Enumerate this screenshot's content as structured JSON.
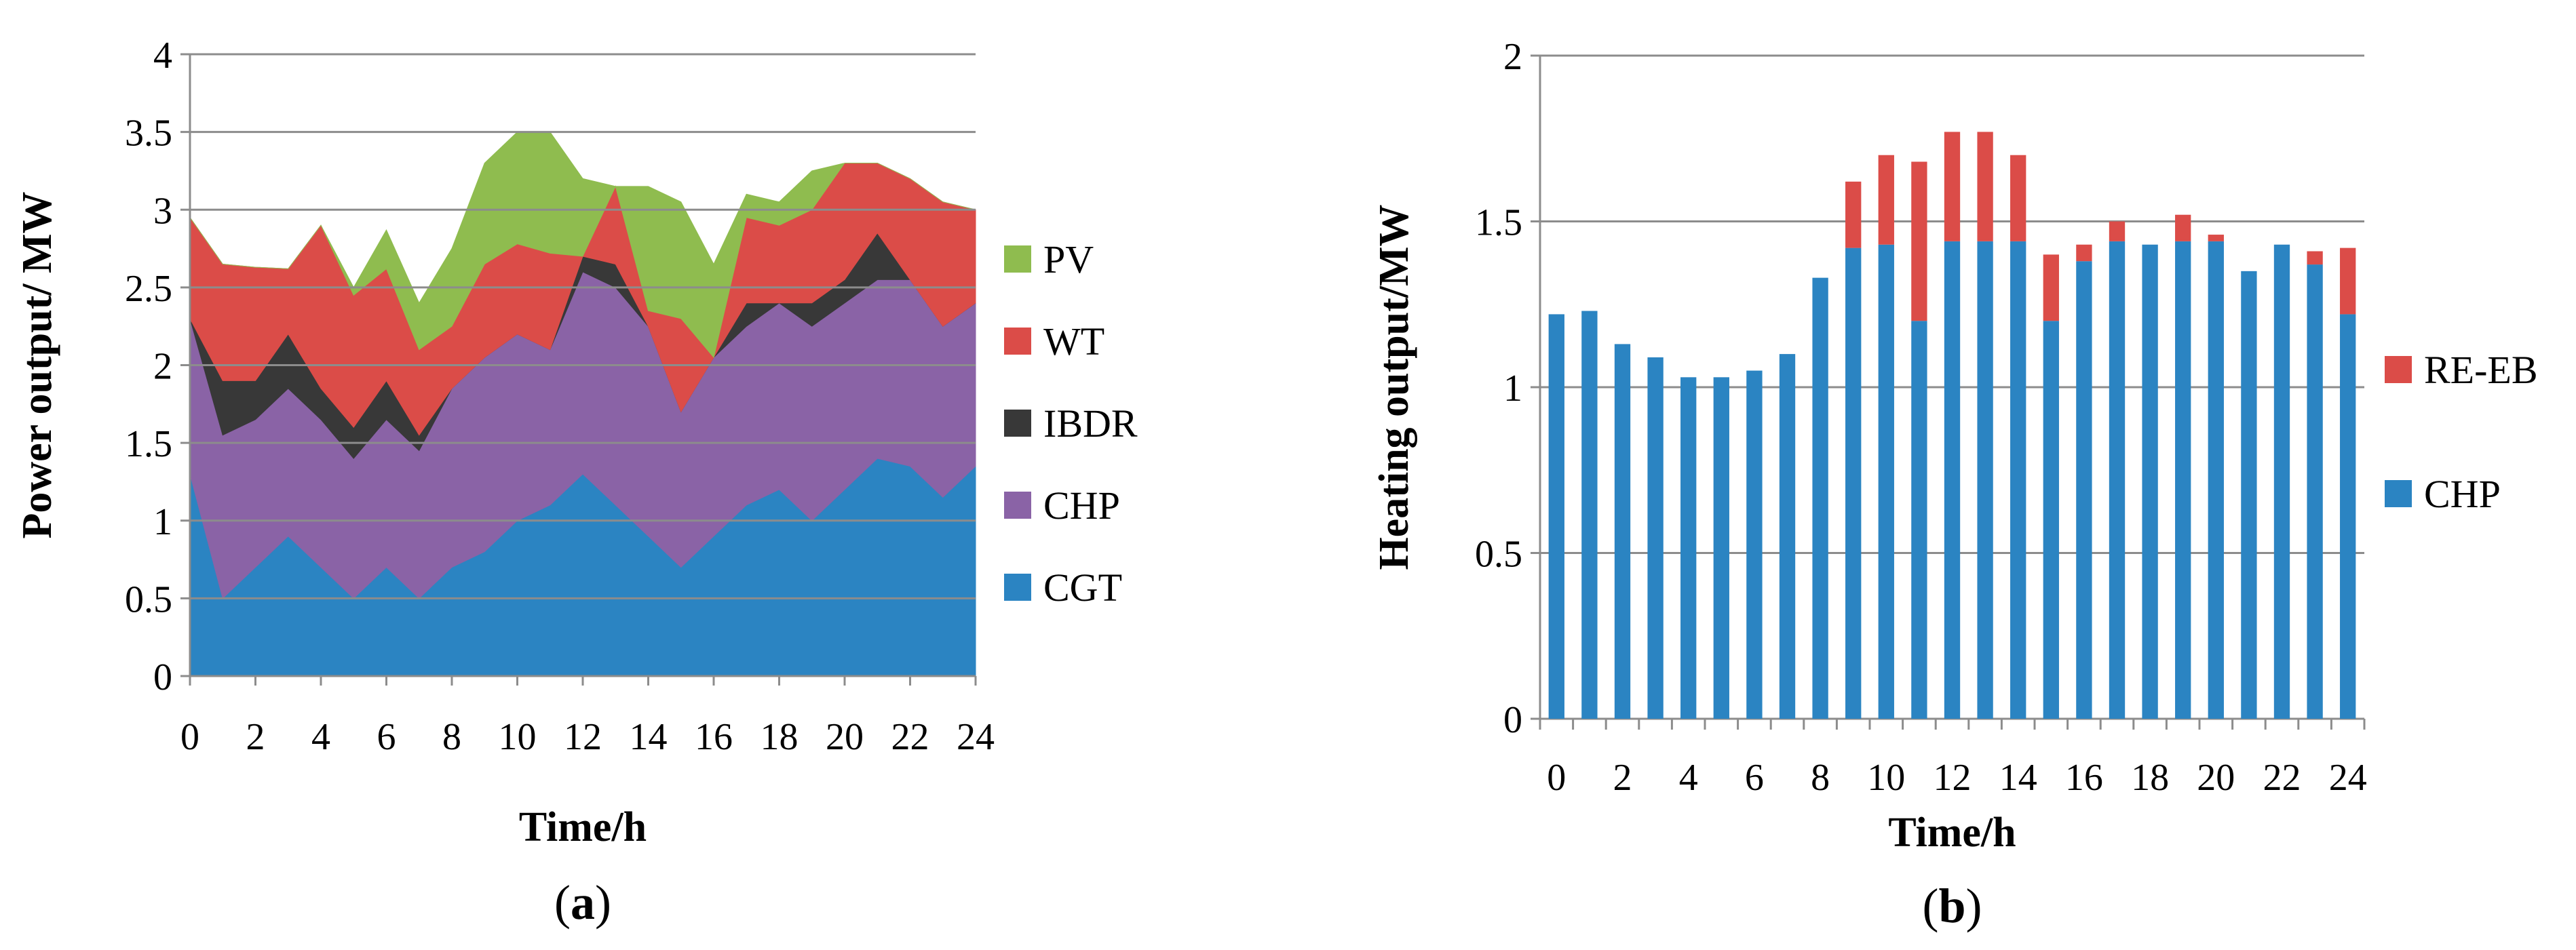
{
  "colors": {
    "PV": "#8fbc4f",
    "WT": "#db4c48",
    "IBDR": "#383838",
    "CHP_area": "#8a63a6",
    "CGT": "#2b84c2",
    "CHP_bar": "#2b84c2",
    "RE_EB": "#db4c48",
    "grid": "#8c8c8c",
    "axis": "#8c8c8c"
  },
  "chart_data": [
    {
      "type": "area",
      "stacked": true,
      "caption_prefix": "(",
      "caption_letter": "a",
      "caption_suffix": ")",
      "xlabel": "Time/h",
      "ylabel": "Power output/ MW",
      "xlim": [
        0,
        24
      ],
      "ylim": [
        0,
        4
      ],
      "ystep": 0.5,
      "xticks": [
        "0",
        "2",
        "4",
        "6",
        "8",
        "10",
        "12",
        "14",
        "16",
        "18",
        "20",
        "22",
        "24"
      ],
      "yticks": [
        "0",
        "0.5",
        "1",
        "1.5",
        "2",
        "2.5",
        "3",
        "3.5",
        "4"
      ],
      "legend_position": "right",
      "x": [
        0,
        1,
        2,
        3,
        4,
        5,
        6,
        7,
        8,
        9,
        10,
        11,
        12,
        13,
        14,
        15,
        16,
        17,
        18,
        19,
        20,
        21,
        22,
        23,
        24
      ],
      "series": [
        {
          "name": "CGT",
          "color_key": "CGT",
          "values": [
            1.3,
            0.5,
            0.7,
            0.9,
            0.7,
            0.5,
            0.7,
            0.5,
            0.7,
            0.8,
            1.0,
            1.1,
            1.3,
            1.1,
            0.9,
            0.7,
            0.9,
            1.1,
            1.2,
            1.0,
            1.2,
            1.4,
            1.35,
            1.15,
            1.35
          ]
        },
        {
          "name": "CHP",
          "color_key": "CHP_area",
          "values": [
            1.0,
            1.05,
            0.95,
            0.95,
            0.95,
            0.9,
            0.95,
            0.95,
            1.15,
            1.25,
            1.2,
            1.0,
            1.3,
            1.4,
            1.35,
            1.0,
            1.15,
            1.15,
            1.2,
            1.25,
            1.2,
            1.15,
            1.2,
            1.1,
            1.05
          ]
        },
        {
          "name": "IBDR",
          "color_key": "IBDR",
          "values": [
            0.0,
            0.35,
            0.25,
            0.35,
            0.2,
            0.2,
            0.25,
            0.1,
            0.0,
            0.0,
            0.0,
            0.0,
            0.1,
            0.15,
            0.0,
            0.0,
            0.0,
            0.15,
            0.0,
            0.15,
            0.15,
            0.3,
            0.0,
            0.0,
            0.0
          ]
        },
        {
          "name": "WT",
          "color_key": "WT",
          "values": [
            0.65,
            0.75,
            0.73,
            0.42,
            1.05,
            0.85,
            0.72,
            0.55,
            0.4,
            0.6,
            0.58,
            0.62,
            0.0,
            0.5,
            0.1,
            0.6,
            0.0,
            0.55,
            0.5,
            0.6,
            0.75,
            0.45,
            0.65,
            0.8,
            0.6
          ]
        },
        {
          "name": "PV",
          "color_key": "PV",
          "values": [
            0.0,
            0.0,
            0.0,
            0.0,
            0.0,
            0.05,
            0.25,
            0.3,
            0.5,
            0.65,
            0.72,
            0.78,
            0.5,
            0.0,
            0.8,
            0.75,
            0.6,
            0.15,
            0.15,
            0.25,
            0.0,
            0.0,
            0.0,
            0.0,
            0.0
          ]
        }
      ],
      "legend": [
        {
          "name": "PV",
          "color_key": "PV"
        },
        {
          "name": "WT",
          "color_key": "WT"
        },
        {
          "name": "IBDR",
          "color_key": "IBDR"
        },
        {
          "name": "CHP",
          "color_key": "CHP_area"
        },
        {
          "name": "CGT",
          "color_key": "CGT"
        }
      ]
    },
    {
      "type": "bar",
      "stacked": true,
      "caption_prefix": "(",
      "caption_letter": "b",
      "caption_suffix": ")",
      "xlabel": "Time/h",
      "ylabel": "Heating output/MW",
      "xlim": [
        0,
        24
      ],
      "ylim": [
        0,
        2
      ],
      "ystep": 0.5,
      "xticks": [
        "0",
        "2",
        "4",
        "6",
        "8",
        "10",
        "12",
        "14",
        "16",
        "18",
        "20",
        "22",
        "24"
      ],
      "yticks": [
        "0",
        "0.5",
        "1",
        "1.5",
        "2"
      ],
      "legend_position": "right",
      "categories": [
        "0",
        "1",
        "2",
        "3",
        "4",
        "5",
        "6",
        "7",
        "8",
        "9",
        "10",
        "11",
        "12",
        "13",
        "14",
        "15",
        "16",
        "17",
        "18",
        "19",
        "20",
        "21",
        "22",
        "23",
        "24"
      ],
      "series": [
        {
          "name": "CHP",
          "color_key": "CHP_bar",
          "values": [
            1.22,
            1.23,
            1.13,
            1.09,
            1.03,
            1.03,
            1.05,
            1.1,
            1.33,
            1.42,
            1.43,
            1.2,
            1.44,
            1.44,
            1.44,
            1.2,
            1.38,
            1.44,
            1.43,
            1.44,
            1.44,
            1.35,
            1.43,
            1.37,
            1.22
          ]
        },
        {
          "name": "RE-EB",
          "color_key": "RE_EB",
          "values": [
            0.0,
            0.0,
            0.0,
            0.0,
            0.0,
            0.0,
            0.0,
            0.0,
            0.0,
            0.2,
            0.27,
            0.48,
            0.33,
            0.33,
            0.26,
            0.2,
            0.05,
            0.06,
            0.0,
            0.08,
            0.02,
            0.0,
            0.0,
            0.04,
            0.2
          ]
        }
      ],
      "legend": [
        {
          "name": "RE-EB",
          "color_key": "RE_EB"
        },
        {
          "name": "CHP",
          "color_key": "CHP_bar"
        }
      ]
    }
  ]
}
